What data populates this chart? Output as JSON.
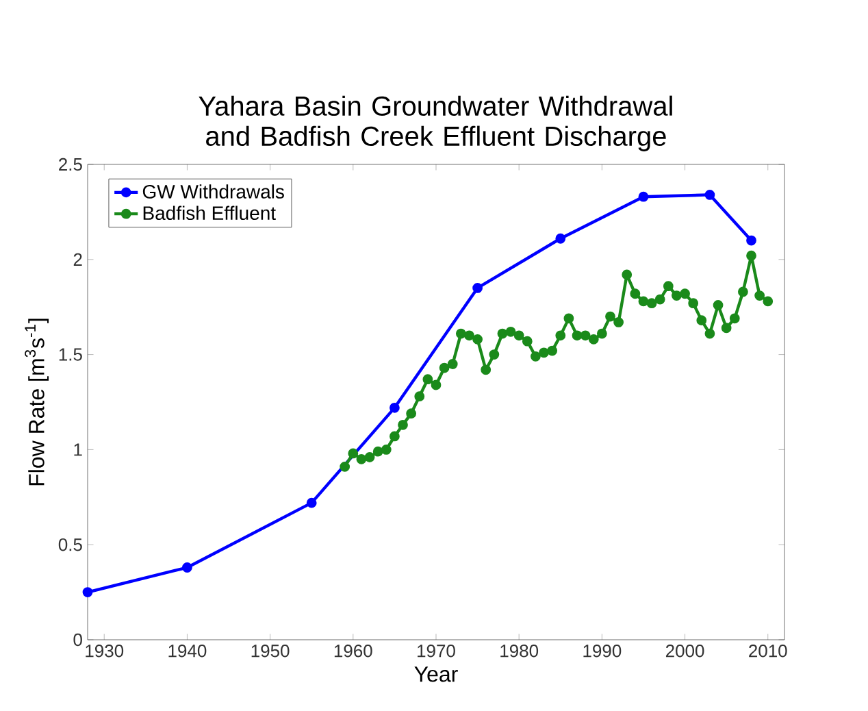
{
  "chart_data": {
    "type": "line",
    "title": "Yahara Basin Groundwater Withdrawal and Badfish Creek Effluent Discharge",
    "xlabel": "Year",
    "ylabel": "Flow Rate [m$^{3}$s$^{-1}$]",
    "xlim": [
      1928,
      2012
    ],
    "xticks": [
      1930,
      1940,
      1950,
      1960,
      1970,
      1980,
      1990,
      2000,
      2010
    ],
    "ylim": [
      0,
      2.5
    ],
    "yticks": [
      0,
      0.5,
      1,
      1.5,
      2,
      2.5
    ],
    "grid": false,
    "legend": "top left",
    "marker": "circle",
    "line_style": "solid",
    "series": [
      {
        "name": "GW Withdrawals",
        "color": "#0000ff",
        "x": [
          1928,
          1940,
          1955,
          1965,
          1975,
          1985,
          1995,
          2003,
          2008
        ],
        "values": [
          0.25,
          0.38,
          0.72,
          1.22,
          1.85,
          2.11,
          2.33,
          2.34,
          2.1
        ]
      },
      {
        "name": "Badfish Effluent",
        "color": "#1a8a1a",
        "x": [
          1959,
          1960,
          1961,
          1962,
          1963,
          1964,
          1965,
          1966,
          1967,
          1968,
          1969,
          1970,
          1971,
          1972,
          1973,
          1974,
          1975,
          1976,
          1977,
          1978,
          1979,
          1980,
          1981,
          1982,
          1983,
          1984,
          1985,
          1986,
          1987,
          1988,
          1989,
          1990,
          1991,
          1992,
          1993,
          1994,
          1995,
          1996,
          1997,
          1998,
          1999,
          2000,
          2001,
          2002,
          2003,
          2004,
          2005,
          2006,
          2007,
          2008,
          2009,
          2010
        ],
        "values": [
          0.91,
          0.98,
          0.95,
          0.96,
          0.99,
          1.0,
          1.07,
          1.13,
          1.19,
          1.28,
          1.37,
          1.34,
          1.43,
          1.45,
          1.61,
          1.6,
          1.58,
          1.42,
          1.5,
          1.61,
          1.62,
          1.6,
          1.57,
          1.49,
          1.51,
          1.52,
          1.6,
          1.69,
          1.6,
          1.6,
          1.58,
          1.61,
          1.7,
          1.67,
          1.92,
          1.82,
          1.78,
          1.77,
          1.79,
          1.86,
          1.81,
          1.82,
          1.77,
          1.68,
          1.61,
          1.76,
          1.64,
          1.69,
          1.83,
          2.02,
          1.81,
          1.78
        ]
      }
    ]
  }
}
